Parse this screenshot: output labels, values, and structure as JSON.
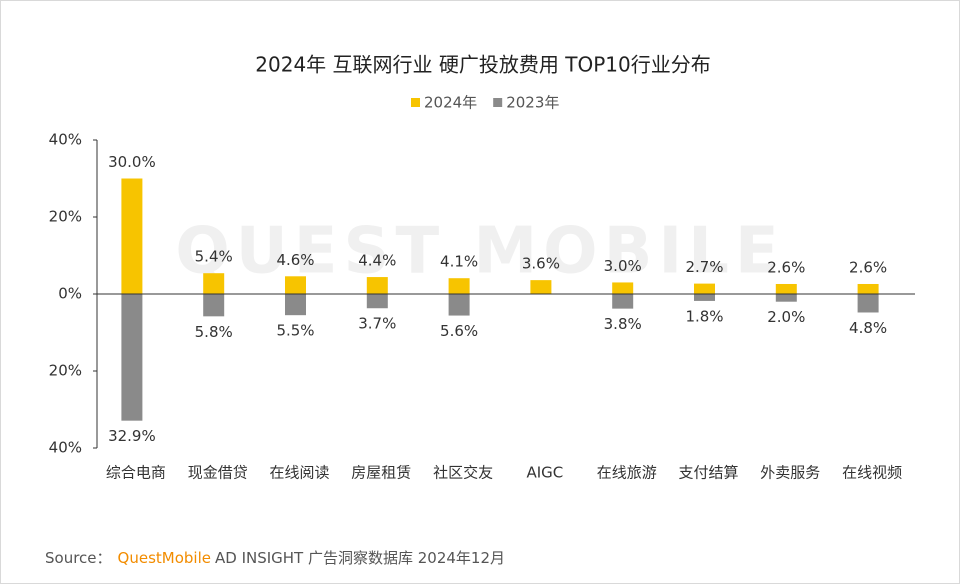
{
  "chart_data": {
    "type": "diverging-bar",
    "title": "2024年 互联网行业 硬广投放费用 TOP10行业分布",
    "watermark": "QUEST MOBILE",
    "categories": [
      "综合电商",
      "现金借贷",
      "在线阅读",
      "房屋租赁",
      "社区交友",
      "AIGC",
      "在线旅游",
      "支付结算",
      "外卖服务",
      "在线视频"
    ],
    "series": [
      {
        "name": "2024年",
        "color": "#f7c400",
        "values": [
          30.0,
          5.4,
          4.6,
          4.4,
          4.1,
          3.6,
          3.0,
          2.7,
          2.6,
          2.6
        ],
        "value_labels": [
          "30.0%",
          "5.4%",
          "4.6%",
          "4.4%",
          "4.1%",
          "3.6%",
          "3.0%",
          "2.7%",
          "2.6%",
          "2.6%"
        ]
      },
      {
        "name": "2023年",
        "color": "#8a8a8a",
        "values": [
          -32.9,
          -5.8,
          -5.5,
          -3.7,
          -5.6,
          null,
          -3.8,
          -1.8,
          -2.0,
          -4.8
        ],
        "value_labels": [
          "32.9%",
          "5.8%",
          "5.5%",
          "3.7%",
          "5.6%",
          null,
          "3.8%",
          "1.8%",
          "2.0%",
          "4.8%"
        ]
      }
    ],
    "ylim": [
      -40,
      40
    ],
    "yticks": [
      {
        "value": -40,
        "label": "40%"
      },
      {
        "value": -20,
        "label": "20%"
      },
      {
        "value": 0,
        "label": "0%"
      },
      {
        "value": 20,
        "label": "20%"
      },
      {
        "value": 40,
        "label": "40%"
      }
    ],
    "legend": "top",
    "source": {
      "prefix": "Source：",
      "brand": "QuestMobile",
      "text": "AD INSIGHT 广告洞察数据库 2024年12月"
    }
  }
}
